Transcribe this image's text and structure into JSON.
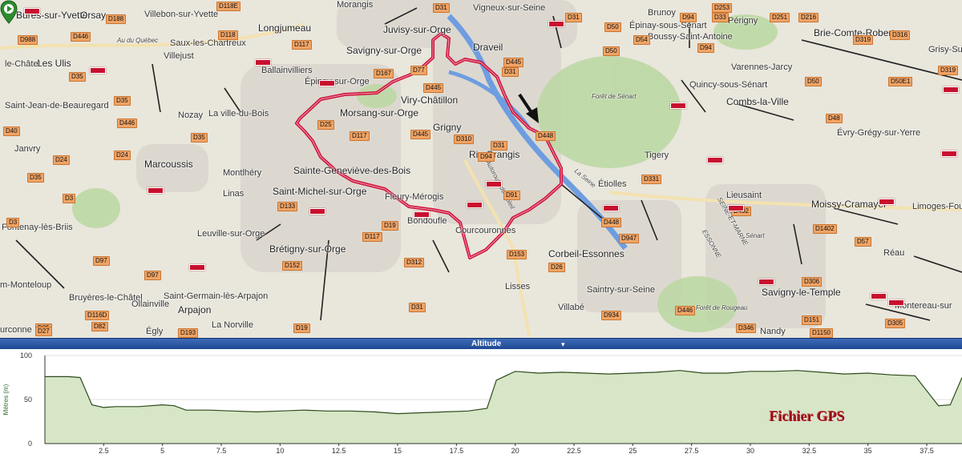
{
  "map": {
    "places": [
      {
        "name": "Bures-sur-Yvette",
        "size": "big"
      },
      {
        "name": "Orsay",
        "size": "big"
      },
      {
        "name": "Villebon-sur-Yvette",
        "size": "normal"
      },
      {
        "name": "Morangis",
        "size": "normal"
      },
      {
        "name": "Vigneux-sur-Seine",
        "size": "normal"
      },
      {
        "name": "Brunoy",
        "size": "normal"
      },
      {
        "name": "Périgny",
        "size": "normal"
      },
      {
        "name": "Longjumeau",
        "size": "big"
      },
      {
        "name": "Juvisy-sur-Orge",
        "size": "big"
      },
      {
        "name": "Épinay-sous-Sénart",
        "size": "normal"
      },
      {
        "name": "Boussy-Saint-Antoine",
        "size": "normal"
      },
      {
        "name": "Brie-Comte-Robert",
        "size": "big"
      },
      {
        "name": "Grisy-Suis",
        "size": "normal"
      },
      {
        "name": "Saux-les-Chartreux",
        "size": "normal"
      },
      {
        "name": "Savigny-sur-Orge",
        "size": "big"
      },
      {
        "name": "Draveil",
        "size": "big"
      },
      {
        "name": "Varennes-Jarcy",
        "size": "normal"
      },
      {
        "name": "Villejust",
        "size": "normal"
      },
      {
        "name": "Ballainvilliers",
        "size": "normal"
      },
      {
        "name": "Les Ulis",
        "size": "big"
      },
      {
        "name": "le-Châtel",
        "size": "normal"
      },
      {
        "name": "Épinay-sur-Orge",
        "size": "normal"
      },
      {
        "name": "Quincy-sous-Sénart",
        "size": "normal"
      },
      {
        "name": "Viry-Châtillon",
        "size": "big"
      },
      {
        "name": "Forêt de Sénart",
        "size": "small"
      },
      {
        "name": "Combs-la-Ville",
        "size": "big"
      },
      {
        "name": "Saint-Jean-de-Beauregard",
        "size": "normal"
      },
      {
        "name": "Nozay",
        "size": "normal"
      },
      {
        "name": "La ville-du-Bois",
        "size": "normal"
      },
      {
        "name": "Morsang-sur-Orge",
        "size": "big"
      },
      {
        "name": "Grigny",
        "size": "big"
      },
      {
        "name": "Évry-Grégy-sur-Yerre",
        "size": "normal"
      },
      {
        "name": "Janvry",
        "size": "normal"
      },
      {
        "name": "Ris-Orangis",
        "size": "big"
      },
      {
        "name": "Tigery",
        "size": "normal"
      },
      {
        "name": "Marcoussis",
        "size": "big"
      },
      {
        "name": "Montlhéry",
        "size": "normal"
      },
      {
        "name": "Sainte-Geneviève-des-Bois",
        "size": "big"
      },
      {
        "name": "Étiolles",
        "size": "normal"
      },
      {
        "name": "Saint-Michel-sur-Orge",
        "size": "big"
      },
      {
        "name": "Fleury-Mérogis",
        "size": "normal"
      },
      {
        "name": "Linas",
        "size": "normal"
      },
      {
        "name": "Lieusaint",
        "size": "normal"
      },
      {
        "name": "Moissy-Cramayel",
        "size": "big"
      },
      {
        "name": "Fontenay-lès-Briis",
        "size": "normal"
      },
      {
        "name": "Limoges-Four",
        "size": "normal"
      },
      {
        "name": "Leuville-sur-Orge",
        "size": "normal"
      },
      {
        "name": "Bondoufle",
        "size": "normal"
      },
      {
        "name": "Courcouronnes",
        "size": "normal"
      },
      {
        "name": "Brétigny-sur-Orge",
        "size": "big"
      },
      {
        "name": "Corbeil-Essonnes",
        "size": "big"
      },
      {
        "name": "Réau",
        "size": "normal"
      },
      {
        "name": "Saint-Germain-lès-Arpajon",
        "size": "normal"
      },
      {
        "name": "Saintry-sur-Seine",
        "size": "normal"
      },
      {
        "name": "Lisses",
        "size": "normal"
      },
      {
        "name": "Savigny-le-Temple",
        "size": "big"
      },
      {
        "name": "Montereau-sur",
        "size": "normal"
      },
      {
        "name": "Bruyères-le-Châtel",
        "size": "normal"
      },
      {
        "name": "Ollainville",
        "size": "normal"
      },
      {
        "name": "Arpajon",
        "size": "big"
      },
      {
        "name": "La Norville",
        "size": "normal"
      },
      {
        "name": "Villabé",
        "size": "normal"
      },
      {
        "name": "Forêt de Rougeau",
        "size": "small"
      },
      {
        "name": "Nandy",
        "size": "normal"
      },
      {
        "name": "m-Monteloup",
        "size": "normal"
      },
      {
        "name": "Égly",
        "size": "normal"
      },
      {
        "name": "urconne",
        "size": "normal"
      },
      {
        "name": "Autoroute du Soleil",
        "size": "small"
      },
      {
        "name": "SEINE-ET-MARNE",
        "size": "small"
      },
      {
        "name": "ESSONNE",
        "size": "small"
      },
      {
        "name": "La Seine",
        "size": "small"
      },
      {
        "name": "Sénart",
        "size": "small"
      },
      {
        "name": "Au du Québec",
        "size": "small"
      }
    ],
    "road_labels": [
      "D188",
      "D118E",
      "D31",
      "D31",
      "D253",
      "D33",
      "D988",
      "D446",
      "D118",
      "D50",
      "D94",
      "D251",
      "D216",
      "D316",
      "D117",
      "D54",
      "D319",
      "D94",
      "D445",
      "D31",
      "D50",
      "D319",
      "D35",
      "D167",
      "D77",
      "D35",
      "D445",
      "D50",
      "D50E1",
      "D446",
      "D25",
      "D117",
      "D445",
      "D48",
      "D40",
      "D35",
      "D310",
      "D448",
      "D24",
      "D31",
      "D94",
      "D331",
      "D24",
      "D35",
      "D91",
      "D402",
      "D3",
      "D448",
      "D3",
      "D133",
      "D1402",
      "D19",
      "D947",
      "D117",
      "D57",
      "D312",
      "D153",
      "D97",
      "D26",
      "D97",
      "D152",
      "D306",
      "D31",
      "D934",
      "D446",
      "D116D",
      "D35",
      "D151",
      "D82",
      "D27",
      "D193",
      "D19",
      "D346",
      "D305",
      "D1150"
    ],
    "colors": {
      "track": "#d0103a",
      "water": "#6e9de0",
      "forest": "#b9d6a0",
      "urban": "#dcd7d0"
    }
  },
  "profile_tab": {
    "label": "Altitude",
    "chevron": "▾"
  },
  "profile": {
    "ylabel": "Mètres (m)",
    "yticks": [
      "100",
      "50",
      "0"
    ],
    "xticks": [
      "2.5",
      "5",
      "7.5",
      "10",
      "12.5",
      "15",
      "17.5",
      "20",
      "22.5",
      "25",
      "27.5",
      "30",
      "32.5",
      "35",
      "37.5"
    ]
  },
  "chart_data": {
    "type": "area",
    "title": "",
    "xlabel": "",
    "ylabel": "Mètres (m)",
    "xlim": [
      0,
      39
    ],
    "ylim": [
      0,
      100
    ],
    "grid": true,
    "series": [
      {
        "x": [
          0,
          1,
          1.5,
          2,
          2.5,
          3,
          4,
          5,
          5.5,
          6,
          7,
          8,
          9,
          10,
          11,
          12,
          13,
          14,
          15,
          16,
          17,
          18,
          18.8,
          19.2,
          20,
          21,
          22,
          23,
          24,
          25,
          26,
          27,
          28,
          29,
          30,
          31,
          32,
          33,
          34,
          35,
          36,
          37,
          37.5,
          38,
          38.5,
          39
        ],
        "values": [
          76,
          76,
          75,
          44,
          41,
          42,
          42,
          44,
          43,
          38,
          38,
          37,
          36,
          37,
          38,
          37,
          37,
          36,
          34,
          35,
          36,
          37,
          40,
          72,
          82,
          80,
          81,
          80,
          79,
          80,
          81,
          83,
          80,
          80,
          82,
          82,
          83,
          81,
          79,
          80,
          78,
          77,
          60,
          43,
          44,
          75
        ]
      }
    ]
  },
  "watermark": "Fichier GPS"
}
